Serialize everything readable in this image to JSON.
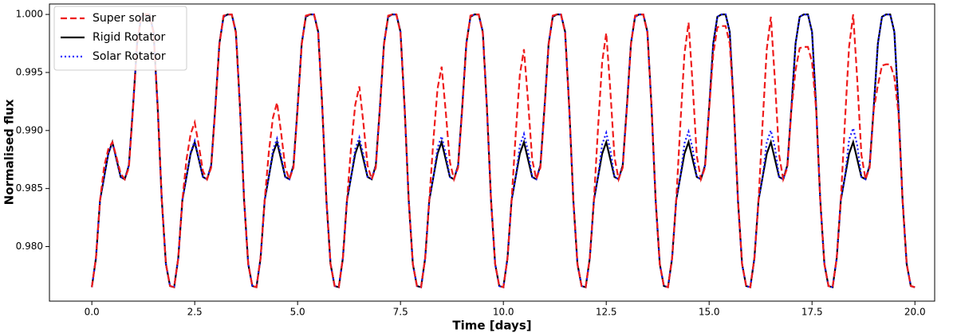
{
  "chart_data": {
    "type": "line",
    "xlabel": "Time [days]",
    "ylabel": "Normalised flux",
    "xlim": [
      -1.03,
      20.48
    ],
    "ylim": [
      0.9753,
      1.0009
    ],
    "xticks": [
      {
        "value": 0,
        "label": "0.0"
      },
      2.5,
      {
        "value": 5,
        "label": "5.0"
      },
      7.5,
      {
        "value": 10,
        "label": "10.0"
      },
      12.5,
      {
        "value": 15,
        "label": "15.0"
      },
      17.5,
      {
        "value": 20,
        "label": "20.0"
      }
    ],
    "yticks": [
      {
        "value": 0.98,
        "label": "0.980"
      },
      {
        "value": 0.985,
        "label": "0.985"
      },
      {
        "value": 0.99,
        "label": "0.990"
      },
      {
        "value": 0.995,
        "label": "0.995"
      },
      {
        "value": 1,
        "label": "1.000"
      }
    ],
    "grid": false,
    "legend": "upper left",
    "x": [
      0,
      0.1,
      0.2,
      0.3,
      0.4,
      0.5,
      0.6,
      0.7,
      0.8,
      0.9,
      1,
      1.1,
      1.2,
      1.3,
      1.4,
      1.5,
      1.6,
      1.7,
      1.8,
      1.9,
      2,
      2.1,
      2.2,
      2.3,
      2.4,
      2.5,
      2.6,
      2.7,
      2.8,
      2.9,
      3,
      3.1,
      3.2,
      3.3,
      3.4,
      3.5,
      3.6,
      3.7,
      3.8,
      3.9,
      4,
      4.1,
      4.2,
      4.3,
      4.4,
      4.5,
      4.6,
      4.7,
      4.8,
      4.9,
      5,
      5.1,
      5.2,
      5.3,
      5.4,
      5.5,
      5.6,
      5.7,
      5.8,
      5.9,
      6,
      6.1,
      6.2,
      6.3,
      6.4,
      6.5,
      6.6,
      6.7,
      6.8,
      6.9,
      7,
      7.1,
      7.2,
      7.3,
      7.4,
      7.5,
      7.6,
      7.7,
      7.8,
      7.9,
      8,
      8.1,
      8.2,
      8.3,
      8.4,
      8.5,
      8.6,
      8.7,
      8.8,
      8.9,
      9,
      9.1,
      9.2,
      9.3,
      9.4,
      9.5,
      9.6,
      9.7,
      9.8,
      9.9,
      10,
      10.1,
      10.2,
      10.3,
      10.4,
      10.5,
      10.6,
      10.7,
      10.8,
      10.9,
      11,
      11.1,
      11.2,
      11.3,
      11.4,
      11.5,
      11.6,
      11.7,
      11.8,
      11.9,
      12,
      12.1,
      12.2,
      12.3,
      12.4,
      12.5,
      12.6,
      12.7,
      12.8,
      12.9,
      13,
      13.1,
      13.2,
      13.3,
      13.4,
      13.5,
      13.6,
      13.7,
      13.8,
      13.9,
      14,
      14.1,
      14.2,
      14.3,
      14.4,
      14.5,
      14.6,
      14.7,
      14.8,
      14.9,
      15,
      15.1,
      15.2,
      15.3,
      15.4,
      15.5,
      15.6,
      15.7,
      15.8,
      15.9,
      16,
      16.1,
      16.2,
      16.3,
      16.4,
      16.5,
      16.6,
      16.7,
      16.8,
      16.9,
      17,
      17.1,
      17.2,
      17.3,
      17.4,
      17.5,
      17.6,
      17.7,
      17.8,
      17.9,
      18,
      18.1,
      18.2,
      18.3,
      18.4,
      18.5,
      18.6,
      18.7,
      18.8,
      18.9,
      19,
      19.1,
      19.2,
      19.3,
      19.4,
      19.5,
      19.6,
      19.7,
      19.8,
      19.9,
      20
    ],
    "series": [
      {
        "name": "Super solar",
        "color": "#ee1c1c",
        "linestyle": "dashed",
        "values": [
          0.9765,
          0.979,
          0.984,
          0.9869,
          0.9884,
          0.989,
          0.9877,
          0.9863,
          0.9858,
          0.9868,
          0.9918,
          0.9974,
          0.9999,
          1,
          1,
          0.9984,
          0.992,
          0.984,
          0.9785,
          0.9766,
          0.9765,
          0.979,
          0.984,
          0.9875,
          0.9897,
          0.9907,
          0.9887,
          0.9865,
          0.9858,
          0.9868,
          0.9918,
          0.9974,
          0.9999,
          1,
          1,
          0.9984,
          0.992,
          0.984,
          0.9785,
          0.9766,
          0.9765,
          0.979,
          0.984,
          0.9881,
          0.9911,
          0.9924,
          0.9898,
          0.9868,
          0.9858,
          0.9868,
          0.9918,
          0.9974,
          0.9999,
          1,
          1,
          0.9984,
          0.992,
          0.984,
          0.9785,
          0.9766,
          0.9765,
          0.979,
          0.984,
          0.9886,
          0.9922,
          0.9938,
          0.9906,
          0.987,
          0.9858,
          0.9868,
          0.9918,
          0.9974,
          0.9999,
          1,
          1,
          0.9984,
          0.992,
          0.984,
          0.9785,
          0.9766,
          0.9765,
          0.979,
          0.984,
          0.9892,
          0.9936,
          0.9955,
          0.9916,
          0.9873,
          0.9858,
          0.9868,
          0.9918,
          0.9974,
          0.9999,
          1,
          1,
          0.9984,
          0.992,
          0.984,
          0.9785,
          0.9766,
          0.9765,
          0.979,
          0.984,
          0.9897,
          0.9948,
          0.997,
          0.9925,
          0.9875,
          0.9858,
          0.9868,
          0.9918,
          0.9974,
          0.9999,
          1,
          1,
          0.9984,
          0.992,
          0.984,
          0.9785,
          0.9766,
          0.9765,
          0.979,
          0.984,
          0.9902,
          0.9959,
          0.9984,
          0.9934,
          0.9877,
          0.9858,
          0.9868,
          0.9918,
          0.9974,
          0.9999,
          1,
          1,
          0.9984,
          0.992,
          0.984,
          0.9785,
          0.9766,
          0.9765,
          0.979,
          0.984,
          0.9905,
          0.9966,
          0.9993,
          0.9939,
          0.9878,
          0.9858,
          0.9868,
          0.9918,
          0.9966,
          0.9989,
          0.999,
          0.999,
          0.9975,
          0.992,
          0.984,
          0.9785,
          0.9766,
          0.9765,
          0.979,
          0.984,
          0.9907,
          0.997,
          0.9998,
          0.9942,
          0.9879,
          0.9858,
          0.9868,
          0.9918,
          0.9952,
          0.9971,
          0.9972,
          0.9972,
          0.9959,
          0.9918,
          0.984,
          0.9785,
          0.9766,
          0.9765,
          0.979,
          0.984,
          0.9908,
          0.9972,
          1,
          0.9943,
          0.9879,
          0.9858,
          0.9868,
          0.9918,
          0.9939,
          0.9956,
          0.9957,
          0.9957,
          0.9946,
          0.9915,
          0.984,
          0.9785,
          0.9766,
          0.9765
        ]
      },
      {
        "name": "Rigid Rotator",
        "color": "#000000",
        "linestyle": "solid",
        "values": [
          0.9765,
          0.979,
          0.984,
          0.986,
          0.988,
          0.989,
          0.9875,
          0.986,
          0.9858,
          0.987,
          0.992,
          0.9975,
          0.9998,
          1,
          1,
          0.9985,
          0.992,
          0.984,
          0.9785,
          0.9766,
          0.9765,
          0.979,
          0.984,
          0.986,
          0.988,
          0.989,
          0.9875,
          0.986,
          0.9858,
          0.987,
          0.992,
          0.9975,
          0.9998,
          1,
          1,
          0.9985,
          0.992,
          0.984,
          0.9785,
          0.9766,
          0.9765,
          0.979,
          0.984,
          0.986,
          0.988,
          0.989,
          0.9875,
          0.986,
          0.9858,
          0.987,
          0.992,
          0.9975,
          0.9998,
          1,
          1,
          0.9985,
          0.992,
          0.984,
          0.9785,
          0.9766,
          0.9765,
          0.979,
          0.984,
          0.986,
          0.988,
          0.989,
          0.9875,
          0.986,
          0.9858,
          0.987,
          0.992,
          0.9975,
          0.9998,
          1,
          1,
          0.9985,
          0.992,
          0.984,
          0.9785,
          0.9766,
          0.9765,
          0.979,
          0.984,
          0.986,
          0.988,
          0.989,
          0.9875,
          0.986,
          0.9858,
          0.987,
          0.992,
          0.9975,
          0.9998,
          1,
          1,
          0.9985,
          0.992,
          0.984,
          0.9785,
          0.9766,
          0.9765,
          0.979,
          0.984,
          0.986,
          0.988,
          0.989,
          0.9875,
          0.986,
          0.9858,
          0.987,
          0.992,
          0.9975,
          0.9998,
          1,
          1,
          0.9985,
          0.992,
          0.984,
          0.9785,
          0.9766,
          0.9765,
          0.979,
          0.984,
          0.986,
          0.988,
          0.989,
          0.9875,
          0.986,
          0.9858,
          0.987,
          0.992,
          0.9975,
          0.9998,
          1,
          1,
          0.9985,
          0.992,
          0.984,
          0.9785,
          0.9766,
          0.9765,
          0.979,
          0.984,
          0.986,
          0.988,
          0.989,
          0.9875,
          0.986,
          0.9858,
          0.987,
          0.992,
          0.9975,
          0.9998,
          1,
          1,
          0.9985,
          0.992,
          0.984,
          0.9785,
          0.9766,
          0.9765,
          0.979,
          0.984,
          0.986,
          0.988,
          0.989,
          0.9875,
          0.986,
          0.9858,
          0.987,
          0.992,
          0.9975,
          0.9998,
          1,
          1,
          0.9985,
          0.992,
          0.984,
          0.9785,
          0.9766,
          0.9765,
          0.979,
          0.984,
          0.986,
          0.988,
          0.989,
          0.9875,
          0.986,
          0.9858,
          0.987,
          0.992,
          0.9975,
          0.9998,
          1,
          1,
          0.9985,
          0.992,
          0.984,
          0.9785,
          0.9766,
          0.9765
        ]
      },
      {
        "name": "Solar Rotator",
        "color": "#1a1aff",
        "linestyle": "dotted",
        "values": [
          0.9765,
          0.979,
          0.984,
          0.986,
          0.988,
          0.989,
          0.9875,
          0.986,
          0.9858,
          0.987,
          0.992,
          0.9975,
          0.9998,
          1,
          1,
          0.9985,
          0.992,
          0.984,
          0.9785,
          0.9766,
          0.9765,
          0.979,
          0.984,
          0.986,
          0.9881,
          0.9891,
          0.9876,
          0.986,
          0.9858,
          0.987,
          0.992,
          0.9975,
          0.9998,
          1,
          1,
          0.9985,
          0.992,
          0.984,
          0.9785,
          0.9766,
          0.9765,
          0.979,
          0.984,
          0.986,
          0.9883,
          0.9893,
          0.9878,
          0.986,
          0.9858,
          0.987,
          0.992,
          0.9975,
          0.9998,
          1,
          1,
          0.9985,
          0.992,
          0.984,
          0.9785,
          0.9766,
          0.9765,
          0.979,
          0.984,
          0.986,
          0.9884,
          0.9894,
          0.9879,
          0.986,
          0.9858,
          0.987,
          0.992,
          0.9975,
          0.9998,
          1,
          1,
          0.9985,
          0.992,
          0.984,
          0.9785,
          0.9766,
          0.9765,
          0.979,
          0.984,
          0.986,
          0.9885,
          0.9895,
          0.988,
          0.986,
          0.9858,
          0.987,
          0.992,
          0.9975,
          0.9998,
          1,
          1,
          0.9985,
          0.992,
          0.984,
          0.9785,
          0.9766,
          0.9765,
          0.979,
          0.984,
          0.986,
          0.9887,
          0.9897,
          0.9882,
          0.986,
          0.9858,
          0.987,
          0.992,
          0.9975,
          0.9998,
          1,
          1,
          0.9985,
          0.992,
          0.984,
          0.9785,
          0.9766,
          0.9765,
          0.979,
          0.984,
          0.986,
          0.9888,
          0.9898,
          0.9883,
          0.986,
          0.9858,
          0.987,
          0.992,
          0.9975,
          0.9998,
          1,
          1,
          0.9985,
          0.992,
          0.984,
          0.9785,
          0.9766,
          0.9765,
          0.979,
          0.984,
          0.986,
          0.9889,
          0.9899,
          0.9884,
          0.986,
          0.9858,
          0.987,
          0.992,
          0.9975,
          0.9998,
          1,
          1,
          0.9985,
          0.992,
          0.984,
          0.9785,
          0.9766,
          0.9765,
          0.979,
          0.984,
          0.986,
          0.989,
          0.99,
          0.9885,
          0.986,
          0.9858,
          0.987,
          0.992,
          0.9975,
          0.9998,
          1,
          1,
          0.9985,
          0.992,
          0.984,
          0.9785,
          0.9766,
          0.9765,
          0.979,
          0.984,
          0.986,
          0.9892,
          0.9902,
          0.9887,
          0.986,
          0.9858,
          0.987,
          0.992,
          0.9975,
          0.9998,
          1,
          1,
          0.9985,
          0.992,
          0.984,
          0.9785,
          0.9766,
          0.9765
        ]
      }
    ]
  }
}
